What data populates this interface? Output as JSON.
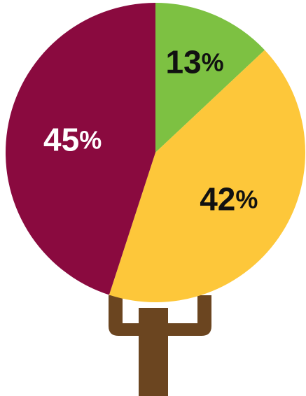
{
  "chart_data": {
    "type": "pie",
    "categories": [
      "",
      "",
      ""
    ],
    "values": [
      13,
      42,
      45
    ],
    "labels": [
      "13",
      "42",
      "45"
    ],
    "unit": "%",
    "colors": [
      "#7dc142",
      "#fdc73a",
      "#8a0a3f"
    ],
    "label_colors": [
      "#111111",
      "#111111",
      "#ffffff"
    ],
    "start_angle_deg": 0,
    "direction": "clockwise",
    "trunk_color": "#6b4520"
  }
}
